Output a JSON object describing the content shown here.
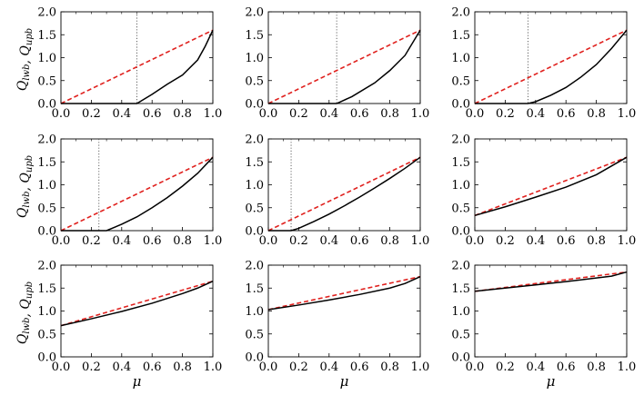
{
  "chart_data": {
    "type": "line",
    "layout": "3x3 grid of small multiples",
    "shared": {
      "xlabel": "μ",
      "ylabel_parts": [
        {
          "text": "Q",
          "sub": "lwb"
        },
        {
          "text": ", ",
          "sub": ""
        },
        {
          "text": "Q",
          "sub": "upb"
        }
      ],
      "xlim": [
        0.0,
        1.0
      ],
      "ylim": [
        0.0,
        2.0
      ],
      "xticks": [
        "0.0",
        "0.2",
        "0.4",
        "0.6",
        "0.8",
        "1.0"
      ],
      "yticks": [
        "0.0",
        "0.5",
        "1.0",
        "1.5",
        "2.0"
      ],
      "grid": false,
      "series_styles": [
        {
          "name": "Q_upb",
          "color": "#e0211e",
          "style": "dashed"
        },
        {
          "name": "Q_lwb",
          "color": "#000000",
          "style": "solid"
        },
        {
          "name": "threshold",
          "color": "#555555",
          "style": "dotted"
        }
      ]
    },
    "panels": [
      {
        "id": "r1c1",
        "upper": {
          "x": [
            0,
            1
          ],
          "y": [
            0.0,
            1.6
          ]
        },
        "lower": {
          "x": [
            0,
            0.5,
            0.6,
            0.7,
            0.8,
            0.9,
            0.95,
            1.0
          ],
          "y": [
            0,
            0,
            0.2,
            0.42,
            0.62,
            0.95,
            1.25,
            1.6
          ]
        },
        "threshold": 0.5
      },
      {
        "id": "r1c2",
        "upper": {
          "x": [
            0,
            1
          ],
          "y": [
            0.0,
            1.6
          ]
        },
        "lower": {
          "x": [
            0,
            0.45,
            0.55,
            0.7,
            0.8,
            0.9,
            1.0
          ],
          "y": [
            0,
            0,
            0.15,
            0.45,
            0.72,
            1.05,
            1.6
          ]
        },
        "threshold": 0.45
      },
      {
        "id": "r1c3",
        "upper": {
          "x": [
            0,
            1
          ],
          "y": [
            0.0,
            1.6
          ]
        },
        "lower": {
          "x": [
            0,
            0.35,
            0.4,
            0.5,
            0.6,
            0.7,
            0.8,
            0.9,
            1.0
          ],
          "y": [
            0,
            0,
            0.04,
            0.18,
            0.35,
            0.58,
            0.85,
            1.2,
            1.6
          ]
        },
        "threshold": 0.35
      },
      {
        "id": "r2c1",
        "upper": {
          "x": [
            0,
            1
          ],
          "y": [
            0.0,
            1.6
          ]
        },
        "lower": {
          "x": [
            0,
            0.3,
            0.4,
            0.5,
            0.6,
            0.7,
            0.8,
            0.9,
            1.0
          ],
          "y": [
            0,
            0,
            0.14,
            0.3,
            0.5,
            0.72,
            0.97,
            1.25,
            1.6
          ]
        },
        "threshold": 0.25
      },
      {
        "id": "r2c2",
        "upper": {
          "x": [
            0,
            1
          ],
          "y": [
            0.0,
            1.6
          ]
        },
        "lower": {
          "x": [
            0,
            0.15,
            0.2,
            0.3,
            0.4,
            0.5,
            0.6,
            0.7,
            0.8,
            0.9,
            1.0
          ],
          "y": [
            0,
            0,
            0.05,
            0.2,
            0.36,
            0.54,
            0.73,
            0.93,
            1.14,
            1.36,
            1.6
          ]
        },
        "threshold": 0.15
      },
      {
        "id": "r2c3",
        "upper": {
          "x": [
            0,
            1
          ],
          "y": [
            0.33,
            1.6
          ]
        },
        "lower": {
          "x": [
            0,
            0.2,
            0.4,
            0.6,
            0.8,
            1.0
          ],
          "y": [
            0.33,
            0.52,
            0.73,
            0.95,
            1.22,
            1.6
          ]
        },
        "threshold": null
      },
      {
        "id": "r3c1",
        "upper": {
          "x": [
            0,
            1
          ],
          "y": [
            0.68,
            1.65
          ]
        },
        "lower": {
          "x": [
            0,
            0.2,
            0.4,
            0.6,
            0.8,
            0.9,
            1.0
          ],
          "y": [
            0.68,
            0.83,
            0.99,
            1.17,
            1.38,
            1.5,
            1.65
          ]
        },
        "threshold": null
      },
      {
        "id": "r3c2",
        "upper": {
          "x": [
            0,
            1
          ],
          "y": [
            1.03,
            1.75
          ]
        },
        "lower": {
          "x": [
            0,
            0.2,
            0.4,
            0.6,
            0.8,
            0.9,
            1.0
          ],
          "y": [
            1.03,
            1.13,
            1.24,
            1.36,
            1.5,
            1.6,
            1.75
          ]
        },
        "threshold": null
      },
      {
        "id": "r3c3",
        "upper": {
          "x": [
            0,
            1
          ],
          "y": [
            1.43,
            1.85
          ]
        },
        "lower": {
          "x": [
            0,
            0.2,
            0.4,
            0.6,
            0.8,
            0.9,
            1.0
          ],
          "y": [
            1.43,
            1.5,
            1.57,
            1.64,
            1.72,
            1.76,
            1.85
          ]
        },
        "threshold": null
      }
    ]
  }
}
